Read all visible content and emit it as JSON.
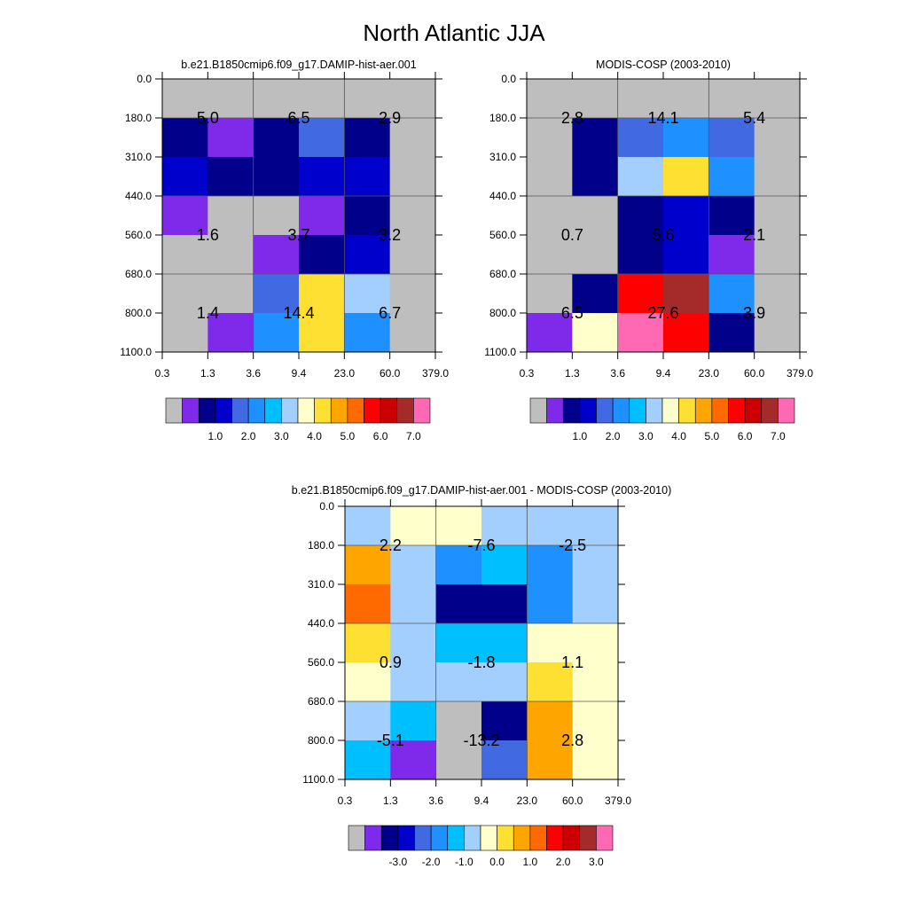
{
  "title": "North Atlantic JJA",
  "x_ticks": [
    "0.3",
    "1.3",
    "3.6",
    "9.4",
    "23.0",
    "60.0",
    "379.0"
  ],
  "y_ticks": [
    "0.0",
    "180.0",
    "310.0",
    "440.0",
    "560.0",
    "680.0",
    "800.0",
    "1100.0"
  ],
  "palette": {
    "gray": "#bebebe",
    "violet": "#7f2aea",
    "navy": "#00008b",
    "mediumblue": "#0000cd",
    "royalblue": "#4169e1",
    "dodgerblue": "#1e90ff",
    "deepskyblue": "#00bfff",
    "lightblue": "#a3cfff",
    "lightyellow": "#ffffcc",
    "gold": "#fde032",
    "orange": "#ffa500",
    "darkorange": "#ff6a00",
    "red": "#ff0000",
    "darkred": "#cc0000",
    "brown": "#a52a2a",
    "pink": "#ff69b4"
  },
  "colorbar_colors": [
    "gray",
    "violet",
    "navy",
    "mediumblue",
    "royalblue",
    "dodgerblue",
    "deepskyblue",
    "lightblue",
    "lightyellow",
    "gold",
    "orange",
    "darkorange",
    "red",
    "darkred",
    "brown",
    "pink"
  ],
  "chart_data": [
    {
      "id": "model",
      "type": "heatmap",
      "title": "b.e21.B1850cmip6.f09_g17.DAMIP-hist-aer.001",
      "x_edges": [
        0.3,
        1.3,
        3.6,
        9.4,
        23.0,
        60.0,
        379.0
      ],
      "y_edges": [
        0.0,
        180.0,
        310.0,
        440.0,
        560.0,
        680.0,
        800.0,
        1100.0
      ],
      "cells": [
        [
          "gray",
          "gray",
          "gray",
          "gray",
          "gray",
          "gray"
        ],
        [
          "navy",
          "violet",
          "navy",
          "royalblue",
          "navy",
          "gray"
        ],
        [
          "mediumblue",
          "navy",
          "navy",
          "mediumblue",
          "mediumblue",
          "gray"
        ],
        [
          "violet",
          "gray",
          "gray",
          "violet",
          "navy",
          "gray"
        ],
        [
          "gray",
          "gray",
          "violet",
          "navy",
          "mediumblue",
          "gray"
        ],
        [
          "gray",
          "gray",
          "royalblue",
          "gold",
          "lightblue",
          "gray"
        ],
        [
          "gray",
          "violet",
          "dodgerblue",
          "gold",
          "dodgerblue",
          "gray"
        ]
      ],
      "annotations": [
        "5.0",
        "6.5",
        "2.9",
        "1.6",
        "3.7",
        "3.2",
        "1.4",
        "14.4",
        "6.7"
      ],
      "colorbar_labels": [
        "1.0",
        "2.0",
        "3.0",
        "4.0",
        "5.0",
        "6.0",
        "7.0"
      ]
    },
    {
      "id": "obs",
      "type": "heatmap",
      "title": "MODIS-COSP (2003-2010)",
      "x_edges": [
        0.3,
        1.3,
        3.6,
        9.4,
        23.0,
        60.0,
        379.0
      ],
      "y_edges": [
        0.0,
        180.0,
        310.0,
        440.0,
        560.0,
        680.0,
        800.0,
        1100.0
      ],
      "cells": [
        [
          "gray",
          "gray",
          "gray",
          "gray",
          "gray",
          "gray"
        ],
        [
          "gray",
          "navy",
          "royalblue",
          "dodgerblue",
          "royalblue",
          "gray"
        ],
        [
          "gray",
          "navy",
          "lightblue",
          "gold",
          "dodgerblue",
          "gray"
        ],
        [
          "gray",
          "gray",
          "navy",
          "mediumblue",
          "navy",
          "gray"
        ],
        [
          "gray",
          "gray",
          "navy",
          "mediumblue",
          "violet",
          "gray"
        ],
        [
          "gray",
          "navy",
          "red",
          "brown",
          "dodgerblue",
          "gray"
        ],
        [
          "violet",
          "lightyellow",
          "pink",
          "red",
          "navy",
          "gray"
        ]
      ],
      "annotations": [
        "2.8",
        "14.1",
        "5.4",
        "0.7",
        "5.6",
        "2.1",
        "6.5",
        "27.6",
        "3.9"
      ],
      "colorbar_labels": [
        "1.0",
        "2.0",
        "3.0",
        "4.0",
        "5.0",
        "6.0",
        "7.0"
      ]
    },
    {
      "id": "diff",
      "type": "heatmap",
      "title": "b.e21.B1850cmip6.f09_g17.DAMIP-hist-aer.001 - MODIS-COSP (2003-2010)",
      "x_edges": [
        0.3,
        1.3,
        3.6,
        9.4,
        23.0,
        60.0,
        379.0
      ],
      "y_edges": [
        0.0,
        180.0,
        310.0,
        440.0,
        560.0,
        680.0,
        800.0,
        1100.0
      ],
      "cells": [
        [
          "lightblue",
          "lightyellow",
          "lightyellow",
          "lightblue",
          "lightblue",
          "lightblue"
        ],
        [
          "orange",
          "lightblue",
          "dodgerblue",
          "deepskyblue",
          "dodgerblue",
          "lightblue"
        ],
        [
          "darkorange",
          "lightblue",
          "navy",
          "navy",
          "dodgerblue",
          "lightblue"
        ],
        [
          "gold",
          "lightblue",
          "deepskyblue",
          "deepskyblue",
          "lightyellow",
          "lightyellow"
        ],
        [
          "lightyellow",
          "lightblue",
          "lightblue",
          "lightblue",
          "gold",
          "lightyellow"
        ],
        [
          "lightblue",
          "deepskyblue",
          "gray",
          "navy",
          "orange",
          "lightyellow"
        ],
        [
          "deepskyblue",
          "violet",
          "gray",
          "royalblue",
          "orange",
          "lightyellow"
        ]
      ],
      "annotations": [
        "2.2",
        "-7.6",
        "-2.5",
        "0.9",
        "-1.8",
        "1.1",
        "-5.1",
        "-13.2",
        "2.8"
      ],
      "colorbar_labels": [
        "-3.0",
        "-2.0",
        "-1.0",
        "0.0",
        "1.0",
        "2.0",
        "3.0"
      ]
    }
  ]
}
